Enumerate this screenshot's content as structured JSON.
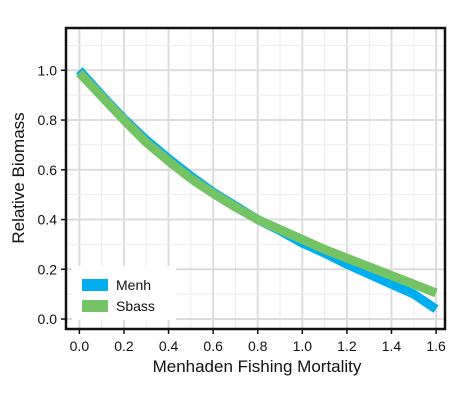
{
  "chart_data": {
    "type": "line",
    "title": "",
    "xlabel": "Menhaden Fishing Mortality",
    "ylabel": "Relative Biomass",
    "xlim": [
      -0.06,
      1.64
    ],
    "ylim": [
      -0.04,
      1.17
    ],
    "x_ticks": [
      0.0,
      0.2,
      0.4,
      0.6,
      0.8,
      1.0,
      1.2,
      1.4,
      1.6
    ],
    "x_tick_labels": [
      "0.0",
      "0.2",
      "0.4",
      "0.6",
      "0.8",
      "1.0",
      "1.2",
      "1.4",
      "1.6"
    ],
    "y_ticks": [
      0.0,
      0.2,
      0.4,
      0.6,
      0.8,
      1.0
    ],
    "y_tick_labels": [
      "0.0",
      "0.2",
      "0.4",
      "0.6",
      "0.8",
      "1.0"
    ],
    "grid": true,
    "legend_position": "bottom-left",
    "series": [
      {
        "name": "Menh",
        "color": "#00aeef",
        "x": [
          0.0,
          0.1,
          0.2,
          0.3,
          0.4,
          0.5,
          0.6,
          0.7,
          0.8,
          0.9,
          1.0,
          1.1,
          1.2,
          1.3,
          1.4,
          1.5,
          1.6
        ],
        "y": [
          1.0,
          0.9,
          0.805,
          0.72,
          0.645,
          0.575,
          0.51,
          0.455,
          0.4,
          0.355,
          0.305,
          0.265,
          0.22,
          0.18,
          0.14,
          0.1,
          0.04
        ]
      },
      {
        "name": "Sbass",
        "color": "#74c365",
        "x": [
          0.0,
          0.1,
          0.2,
          0.3,
          0.4,
          0.5,
          0.6,
          0.7,
          0.8,
          0.9,
          1.0,
          1.1,
          1.2,
          1.3,
          1.4,
          1.5,
          1.6
        ],
        "y": [
          0.99,
          0.895,
          0.8,
          0.71,
          0.635,
          0.565,
          0.505,
          0.45,
          0.4,
          0.36,
          0.32,
          0.28,
          0.245,
          0.21,
          0.175,
          0.14,
          0.105
        ]
      }
    ]
  }
}
